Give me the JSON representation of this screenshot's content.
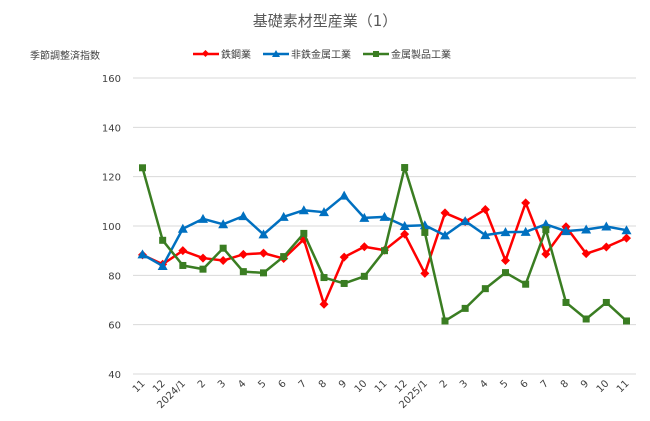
{
  "title": "基礎素材型産業（1）",
  "unit_label": "季節調整済指数",
  "colors": {
    "steel": "#ff0000",
    "nonferrous": "#0070c0",
    "metal_products": "#3a7d22",
    "grid": "#d9d9d9",
    "text": "#404040"
  },
  "chart_data": {
    "type": "line",
    "title": "基礎素材型産業（1）",
    "ylabel": "季節調整済指数",
    "xlabel": "",
    "ylim": [
      40,
      160
    ],
    "yticks": [
      40,
      60,
      80,
      100,
      120,
      140,
      160
    ],
    "grid": true,
    "legend_position": "top",
    "categories": [
      "11",
      "12",
      "2024/1",
      "2",
      "3",
      "4",
      "5",
      "6",
      "7",
      "8",
      "9",
      "10",
      "11",
      "12",
      "2025/1",
      "2",
      "3",
      "4",
      "5",
      "6",
      "7",
      "8",
      "9",
      "10",
      "11"
    ],
    "series": [
      {
        "name": "鉄鋼業",
        "color": "#ff0000",
        "marker": "diamond",
        "values": [
          88.3,
          84.5,
          90.0,
          87.0,
          86.0,
          88.5,
          89.0,
          86.8,
          94.6,
          68.3,
          87.4,
          91.6,
          90.2,
          96.7,
          80.8,
          105.3,
          101.8,
          106.7,
          86.0,
          109.4,
          88.6,
          99.7,
          88.8,
          91.5,
          95.1
        ]
      },
      {
        "name": "非鉄金属工業",
        "color": "#0070c0",
        "marker": "triangle",
        "values": [
          88.5,
          83.8,
          98.9,
          102.9,
          100.7,
          104.0,
          96.6,
          103.7,
          106.4,
          105.6,
          112.3,
          103.3,
          103.7,
          100.0,
          100.3,
          96.2,
          102.0,
          96.3,
          97.5,
          97.6,
          100.7,
          97.9,
          98.6,
          99.8,
          98.3
        ]
      },
      {
        "name": "金属製品工業",
        "color": "#3a7d22",
        "marker": "square",
        "values": [
          123.6,
          94.2,
          84.0,
          82.5,
          91.0,
          81.5,
          81.0,
          87.6,
          97.0,
          79.1,
          76.7,
          79.6,
          90.0,
          123.7,
          97.4,
          61.5,
          66.6,
          74.6,
          81.1,
          76.4,
          98.5,
          69.0,
          62.3,
          69.0,
          61.5
        ]
      }
    ]
  }
}
